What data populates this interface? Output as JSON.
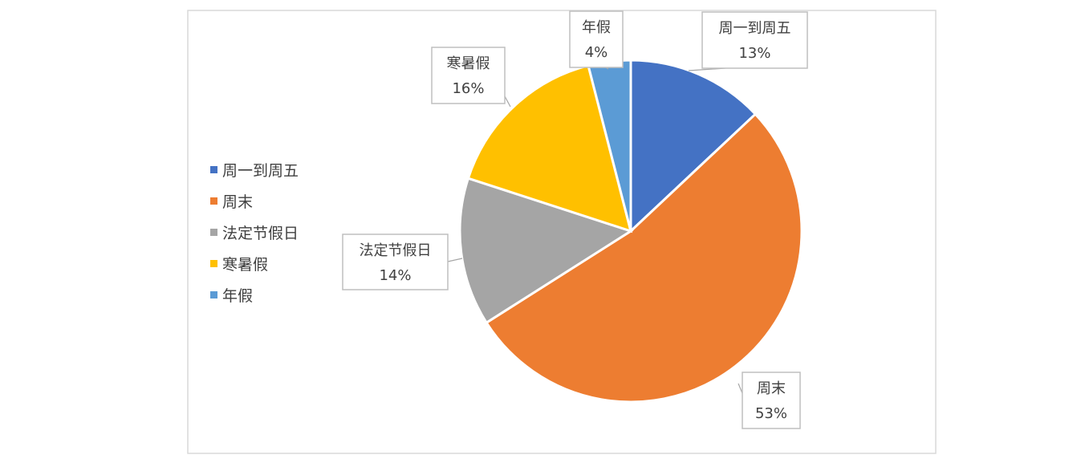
{
  "chart_data": {
    "type": "pie",
    "title": "",
    "legend_position": "left",
    "label_style": "callout",
    "slices": [
      {
        "label": "周一到周五",
        "value": 13,
        "display": "13%",
        "color": "#4472C4"
      },
      {
        "label": "周末",
        "value": 53,
        "display": "53%",
        "color": "#ED7D31"
      },
      {
        "label": "法定节假日",
        "value": 14,
        "display": "14%",
        "color": "#A5A5A5"
      },
      {
        "label": "寒暑假",
        "value": 16,
        "display": "16%",
        "color": "#FFC000"
      },
      {
        "label": "年假",
        "value": 4,
        "display": "4%",
        "color": "#5B9BD5"
      }
    ]
  }
}
